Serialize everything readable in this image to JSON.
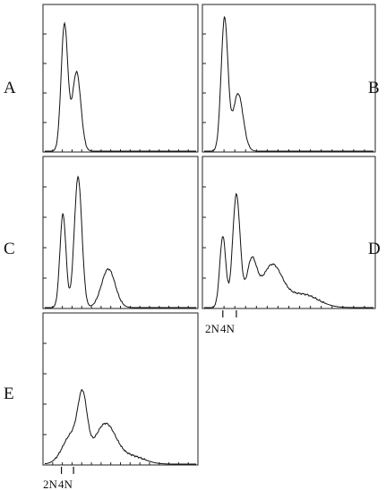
{
  "figure": {
    "panels": [
      {
        "id": "A",
        "label": "A"
      },
      {
        "id": "B",
        "label": "B"
      },
      {
        "id": "C",
        "label": "C"
      },
      {
        "id": "D",
        "label": "D"
      },
      {
        "id": "E",
        "label": "E"
      }
    ],
    "dna_markers": [
      "2N",
      "4N"
    ]
  },
  "chart_data": [
    {
      "type": "area",
      "panel": "A",
      "xlabel": "",
      "ylabel": "",
      "grid": false,
      "peaks": [
        {
          "x": 0.13,
          "height": 0.88,
          "width": 0.022
        },
        {
          "x": 0.21,
          "height": 0.55,
          "width": 0.028
        }
      ]
    },
    {
      "type": "area",
      "panel": "B",
      "xlabel": "",
      "ylabel": "",
      "grid": false,
      "peaks": [
        {
          "x": 0.12,
          "height": 0.92,
          "width": 0.02
        },
        {
          "x": 0.2,
          "height": 0.4,
          "width": 0.03
        }
      ]
    },
    {
      "type": "area",
      "panel": "C",
      "xlabel": "",
      "ylabel": "",
      "grid": false,
      "peaks": [
        {
          "x": 0.12,
          "height": 0.63,
          "width": 0.02
        },
        {
          "x": 0.22,
          "height": 0.88,
          "width": 0.025
        },
        {
          "x": 0.42,
          "height": 0.26,
          "width": 0.045
        }
      ]
    },
    {
      "type": "area",
      "panel": "D",
      "xlabel": "",
      "ylabel": "",
      "grid": false,
      "x_markers": [
        "2N",
        "4N"
      ],
      "peaks": [
        {
          "x": 0.11,
          "height": 0.48,
          "width": 0.018
        },
        {
          "x": 0.19,
          "height": 0.76,
          "width": 0.022
        },
        {
          "x": 0.28,
          "height": 0.3,
          "width": 0.03
        },
        {
          "x": 0.4,
          "height": 0.28,
          "width": 0.06
        },
        {
          "x": 0.58,
          "height": 0.09,
          "width": 0.09
        }
      ]
    },
    {
      "type": "area",
      "panel": "E",
      "xlabel": "",
      "ylabel": "",
      "grid": false,
      "x_markers": [
        "2N",
        "4N"
      ],
      "peaks": [
        {
          "x": 0.18,
          "height": 0.2,
          "width": 0.06
        },
        {
          "x": 0.25,
          "height": 0.37,
          "width": 0.03
        },
        {
          "x": 0.4,
          "height": 0.27,
          "width": 0.07
        },
        {
          "x": 0.58,
          "height": 0.05,
          "width": 0.08
        }
      ]
    }
  ]
}
